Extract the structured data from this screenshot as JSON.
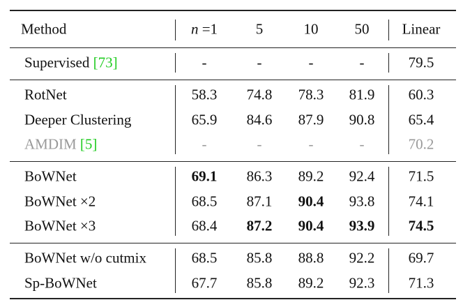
{
  "table": {
    "header": [
      "Method",
      "n =1",
      "5",
      "10",
      "50",
      "Linear"
    ],
    "groups": [
      [
        {
          "method": "Supervised",
          "cite": "[73]",
          "cells": [
            "-",
            "-",
            "-",
            "-",
            "79.5"
          ]
        }
      ],
      [
        {
          "method": "RotNet",
          "cells": [
            "58.3",
            "74.8",
            "78.3",
            "81.9",
            "60.3"
          ]
        },
        {
          "method": "Deeper Clustering",
          "cells": [
            "65.9",
            "84.6",
            "87.9",
            "90.8",
            "65.4"
          ]
        },
        {
          "method": "AMDIM",
          "cite": "[5]",
          "muted": true,
          "cells": [
            "-",
            "-",
            "-",
            "-",
            "70.2"
          ]
        }
      ],
      [
        {
          "method": "BoWNet",
          "bold": [
            0
          ],
          "cells": [
            "69.1",
            "86.3",
            "89.2",
            "92.4",
            "71.5"
          ]
        },
        {
          "method": "BoWNet ×2",
          "bold": [
            2
          ],
          "cells": [
            "68.5",
            "87.1",
            "90.4",
            "93.8",
            "74.1"
          ]
        },
        {
          "method": "BoWNet ×3",
          "bold": [
            1,
            2,
            3,
            4
          ],
          "cells": [
            "68.4",
            "87.2",
            "90.4",
            "93.9",
            "74.5"
          ]
        }
      ],
      [
        {
          "method": "BoWNet w/o cutmix",
          "cells": [
            "68.5",
            "85.8",
            "88.8",
            "92.2",
            "69.7"
          ]
        },
        {
          "method": "Sp-BoWNet",
          "cells": [
            "67.7",
            "85.8",
            "89.2",
            "92.3",
            "71.3"
          ]
        }
      ]
    ]
  }
}
